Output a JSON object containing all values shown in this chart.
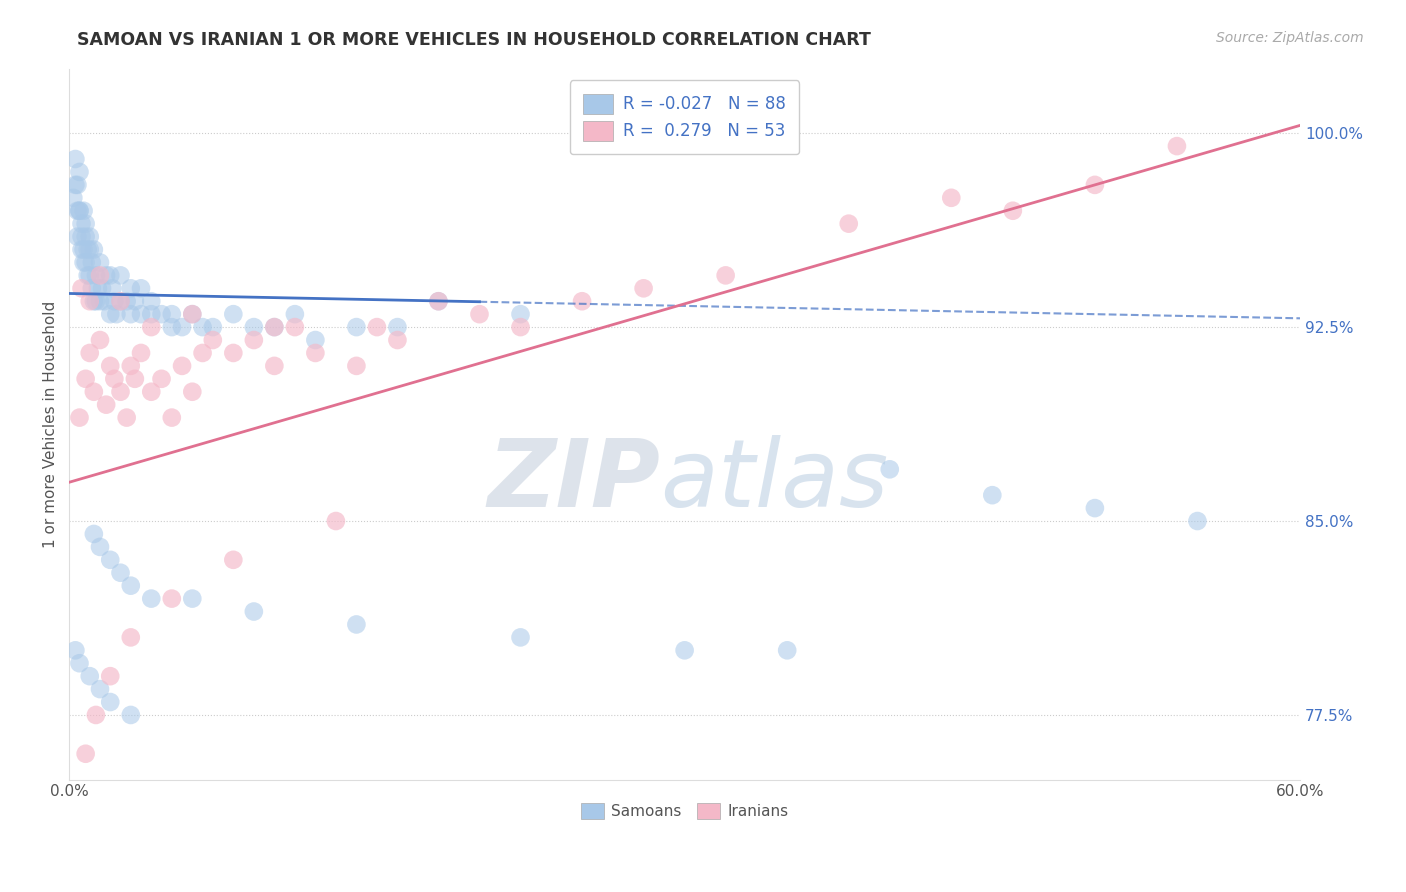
{
  "title": "SAMOAN VS IRANIAN 1 OR MORE VEHICLES IN HOUSEHOLD CORRELATION CHART",
  "source": "Source: ZipAtlas.com",
  "ylabel": "1 or more Vehicles in Household",
  "xlim": [
    0.0,
    60.0
  ],
  "ylim": [
    75.0,
    102.5
  ],
  "y_ticks_right": [
    77.5,
    85.0,
    92.5,
    100.0
  ],
  "y_tick_labels_right": [
    "77.5%",
    "85.0%",
    "92.5%",
    "100.0%"
  ],
  "grid_color": "#cccccc",
  "background_color": "#ffffff",
  "blue_color": "#a8c8e8",
  "pink_color": "#f4b8c8",
  "blue_R": -0.027,
  "blue_N": 88,
  "pink_R": 0.279,
  "pink_N": 53,
  "legend_labels": [
    "Samoans",
    "Iranians"
  ],
  "blue_line_color": "#4472c4",
  "pink_line_color": "#e07090",
  "blue_line_solid_end": 20.0,
  "blue_line_intercept": 93.8,
  "blue_line_slope": -0.016,
  "pink_line_intercept": 86.5,
  "pink_line_slope": 0.23,
  "samoan_x": [
    0.2,
    0.3,
    0.3,
    0.4,
    0.4,
    0.5,
    0.5,
    0.6,
    0.6,
    0.7,
    0.7,
    0.8,
    0.8,
    0.9,
    0.9,
    1.0,
    1.0,
    1.1,
    1.1,
    1.2,
    1.2,
    1.3,
    1.3,
    1.4,
    1.5,
    1.5,
    1.6,
    1.7,
    1.8,
    2.0,
    2.0,
    2.1,
    2.2,
    2.3,
    2.5,
    2.5,
    2.8,
    3.0,
    3.0,
    3.2,
    3.5,
    3.5,
    4.0,
    4.0,
    4.5,
    5.0,
    5.0,
    5.5,
    6.0,
    6.5,
    7.0,
    8.0,
    9.0,
    10.0,
    11.0,
    12.0,
    14.0,
    16.0,
    18.0,
    22.0,
    0.4,
    0.5,
    0.6,
    0.7,
    0.8,
    1.0,
    1.2,
    1.5,
    2.0,
    2.5,
    3.0,
    4.0,
    6.0,
    9.0,
    14.0,
    22.0,
    30.0,
    35.0,
    40.0,
    45.0,
    50.0,
    55.0,
    0.3,
    0.5,
    1.0,
    1.5,
    2.0,
    3.0
  ],
  "samoan_y": [
    97.5,
    99.0,
    98.0,
    97.0,
    96.0,
    98.5,
    97.0,
    96.5,
    95.5,
    97.0,
    95.5,
    96.0,
    95.0,
    95.5,
    94.5,
    96.0,
    94.5,
    95.0,
    94.0,
    95.5,
    93.5,
    94.5,
    93.5,
    94.0,
    95.0,
    93.5,
    94.0,
    93.5,
    94.5,
    94.5,
    93.0,
    94.0,
    93.5,
    93.0,
    93.5,
    94.5,
    93.5,
    94.0,
    93.0,
    93.5,
    93.0,
    94.0,
    93.0,
    93.5,
    93.0,
    92.5,
    93.0,
    92.5,
    93.0,
    92.5,
    92.5,
    93.0,
    92.5,
    92.5,
    93.0,
    92.0,
    92.5,
    92.5,
    93.5,
    93.0,
    98.0,
    97.0,
    96.0,
    95.0,
    96.5,
    95.5,
    84.5,
    84.0,
    83.5,
    83.0,
    82.5,
    82.0,
    82.0,
    81.5,
    81.0,
    80.5,
    80.0,
    80.0,
    87.0,
    86.0,
    85.5,
    85.0,
    80.0,
    79.5,
    79.0,
    78.5,
    78.0,
    77.5
  ],
  "iranian_x": [
    0.5,
    0.8,
    1.0,
    1.2,
    1.5,
    1.8,
    2.0,
    2.2,
    2.5,
    2.8,
    3.0,
    3.2,
    3.5,
    4.0,
    4.5,
    5.0,
    5.5,
    6.0,
    6.5,
    7.0,
    8.0,
    9.0,
    10.0,
    11.0,
    12.0,
    14.0,
    16.0,
    18.0,
    20.0,
    22.0,
    25.0,
    28.0,
    32.0,
    38.0,
    43.0,
    46.0,
    50.0,
    54.0,
    0.6,
    1.0,
    1.5,
    2.5,
    4.0,
    6.0,
    10.0,
    15.0,
    0.8,
    1.3,
    2.0,
    3.0,
    5.0,
    8.0,
    13.0
  ],
  "iranian_y": [
    89.0,
    90.5,
    91.5,
    90.0,
    92.0,
    89.5,
    91.0,
    90.5,
    90.0,
    89.0,
    91.0,
    90.5,
    91.5,
    90.0,
    90.5,
    89.0,
    91.0,
    90.0,
    91.5,
    92.0,
    91.5,
    92.0,
    91.0,
    92.5,
    91.5,
    91.0,
    92.0,
    93.5,
    93.0,
    92.5,
    93.5,
    94.0,
    94.5,
    96.5,
    97.5,
    97.0,
    98.0,
    99.5,
    94.0,
    93.5,
    94.5,
    93.5,
    92.5,
    93.0,
    92.5,
    92.5,
    76.0,
    77.5,
    79.0,
    80.5,
    82.0,
    83.5,
    85.0
  ]
}
